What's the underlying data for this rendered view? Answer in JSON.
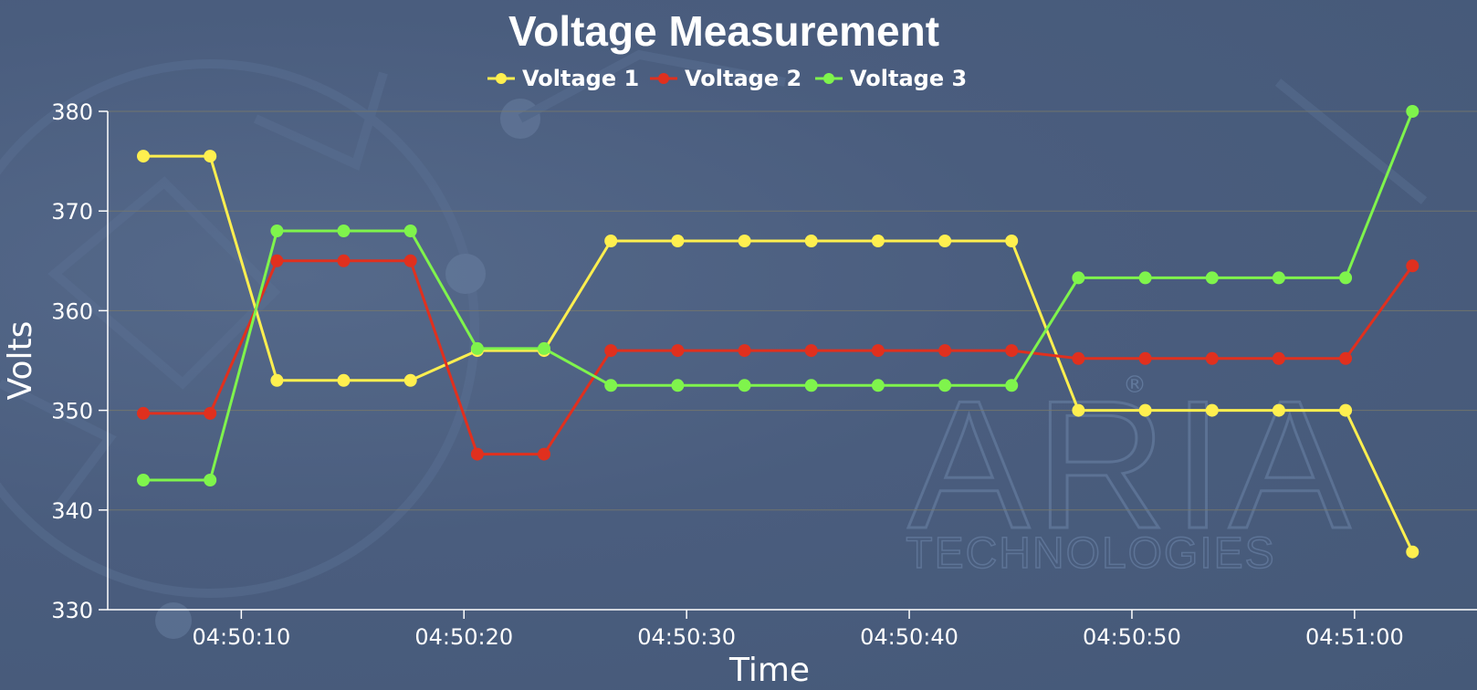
{
  "watermark": {
    "brand": "ARIA",
    "subtitle": "TECHNOLOGIES",
    "mark": "®",
    "color": "#6c84a8"
  },
  "chart_data": {
    "type": "line",
    "title": "Voltage Measurement",
    "xlabel": "Time",
    "ylabel": "Volts",
    "ylim": [
      330,
      380
    ],
    "yticks": [
      330,
      340,
      350,
      360,
      370,
      380
    ],
    "xlim_seconds": [
      4,
      65.5
    ],
    "xticks": [
      {
        "t": 10,
        "label": "04:50:10"
      },
      {
        "t": 20,
        "label": "04:50:20"
      },
      {
        "t": 30,
        "label": "04:50:30"
      },
      {
        "t": 40,
        "label": "04:50:40"
      },
      {
        "t": 50,
        "label": "04:50:50"
      },
      {
        "t": 60,
        "label": "04:51:00"
      }
    ],
    "grid": true,
    "legend_position": "top-center",
    "x": [
      5.6,
      8.6,
      11.6,
      14.6,
      17.6,
      20.6,
      23.6,
      26.6,
      29.6,
      32.6,
      35.6,
      38.6,
      41.6,
      44.6,
      47.6,
      50.6,
      53.6,
      56.6,
      59.6,
      62.6,
      65.6
    ],
    "series": [
      {
        "name": "Voltage 1",
        "color": "#ffef4f",
        "values": [
          375.5,
          375.5,
          353,
          353,
          353,
          356,
          356,
          367,
          367,
          367,
          367,
          367,
          367,
          367,
          350,
          350,
          350,
          350,
          350,
          335.8,
          null
        ]
      },
      {
        "name": "Voltage 2",
        "color": "#e0301e",
        "values": [
          349.7,
          349.7,
          365,
          365,
          365,
          345.6,
          345.6,
          356,
          356,
          356,
          356,
          356,
          356,
          356,
          355.2,
          355.2,
          355.2,
          355.2,
          355.2,
          364.5,
          null
        ]
      },
      {
        "name": "Voltage 3",
        "color": "#7ff44c",
        "values": [
          343,
          343,
          368,
          368,
          368,
          356.2,
          356.2,
          352.5,
          352.5,
          352.5,
          352.5,
          352.5,
          352.5,
          352.5,
          363.3,
          363.3,
          363.3,
          363.3,
          363.3,
          380,
          null
        ]
      }
    ]
  }
}
